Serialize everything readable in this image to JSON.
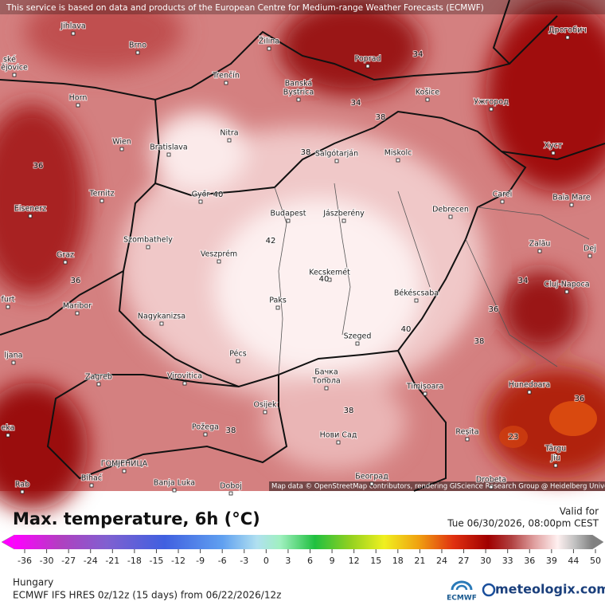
{
  "header": {
    "notice": "This service is based on data and products of the European Centre for Medium-range Weather Forecasts (ECMWF)"
  },
  "map": {
    "cities": [
      "Jihlava",
      "Brno",
      "Žilina",
      "Poprad",
      "Дрогобич",
      "ské",
      "ějovice",
      "Trenčín",
      "Banská",
      "Bystrica",
      "Košice",
      "Ужгород",
      "Horn",
      "Nitra",
      "Wien",
      "Bratislava",
      "Salgótarján",
      "Miskolc",
      "Хуст",
      "Győr",
      "Budapest",
      "Jászberény",
      "Debrecen",
      "Carei",
      "Baia Mare",
      "Ternitz",
      "Eisenerz",
      "Szombathely",
      "Veszprém",
      "Graz",
      "Zalău",
      "Dej",
      "Kecskemét",
      "Cluj-Napoca",
      "Paks",
      "Békéscsaba",
      "furt",
      "Maribor",
      "Nagykanizsa",
      "Szeged",
      "ljana",
      "Pécs",
      "Zagreb",
      "Virovitica",
      "Бачка",
      "Топола",
      "Timișoara",
      "Hunedoara",
      "Osijek",
      "Požega",
      "Нови Сад",
      "Reșita",
      "Târgu",
      "Jiu",
      "eka",
      "ГОМЈЕНИЦА",
      "Bihać",
      "Banja Luka",
      "Doboj",
      "Београд",
      "Drobeta",
      "Rab"
    ],
    "contour_labels": [
      "34",
      "34",
      "38",
      "36",
      "38",
      "40",
      "42",
      "36",
      "40",
      "36",
      "40",
      "38",
      "38",
      "38",
      "23",
      "34",
      "36"
    ],
    "attribution": "Map data © OpenStreetMap contributors, rendering GIScience Research Group @ Heidelberg University"
  },
  "legend": {
    "title": "Max. temperature, 6h (°C)",
    "valid_label": "Valid for",
    "valid_time": "Tue 06/30/2026, 08:00pm CEST",
    "ticks": [
      -36,
      -30,
      -27,
      -24,
      -21,
      -18,
      -15,
      -12,
      -9,
      -6,
      -3,
      0,
      3,
      6,
      9,
      12,
      15,
      18,
      21,
      24,
      27,
      30,
      33,
      36,
      39,
      44,
      50
    ]
  },
  "footer": {
    "region": "Hungary",
    "model": "ECMWF IFS HRES 0z/12z (15 days) from 06/22/2026/12z",
    "ecmwf": "ECMWF",
    "brand": "meteologix.com"
  }
}
